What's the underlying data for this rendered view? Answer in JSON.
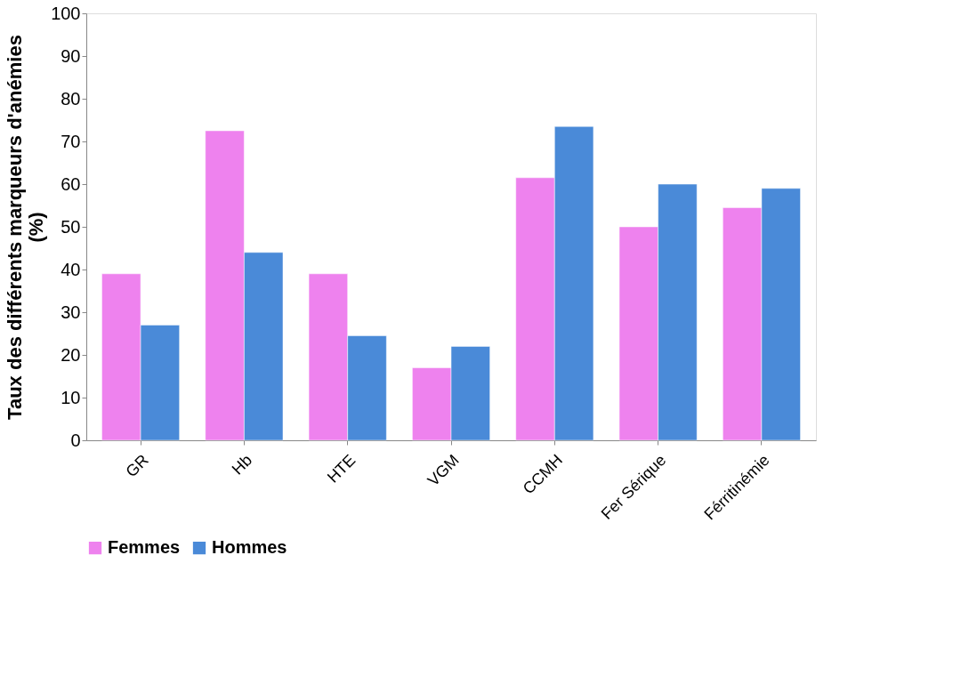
{
  "chart_data": {
    "type": "bar",
    "ylabel": "Taux des différents marqueurs d'anémies (%)",
    "categories": [
      "GR",
      "Hb",
      "HTE",
      "VGM",
      "CCMH",
      "Fer Sérique",
      "Férritinémie"
    ],
    "series": [
      {
        "name": "Femmes",
        "color": "#ee82ee",
        "values": [
          39,
          72.5,
          39,
          17,
          61.5,
          50,
          54.5
        ]
      },
      {
        "name": "Hommes",
        "color": "#4a8ad8",
        "values": [
          27,
          44,
          24.5,
          22,
          73.5,
          60,
          59
        ]
      }
    ],
    "ylim": [
      0,
      100
    ],
    "yticks": [
      0,
      10,
      20,
      30,
      40,
      50,
      60,
      70,
      80,
      90,
      100
    ],
    "grid": false,
    "legend": "bottom"
  }
}
